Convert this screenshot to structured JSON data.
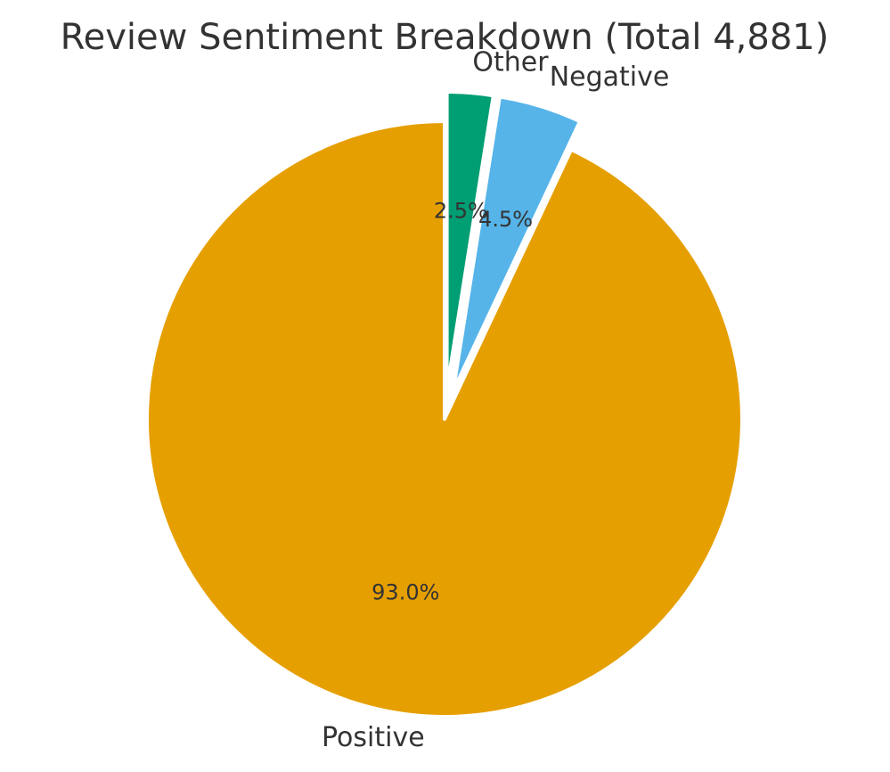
{
  "chart_data": {
    "type": "pie",
    "title": "Review Sentiment Breakdown (Total 4,881)",
    "categories": [
      "Other",
      "Negative",
      "Positive"
    ],
    "values": [
      2.5,
      4.5,
      93.0
    ],
    "value_labels": [
      "2.5%",
      "4.5%",
      "93.0%"
    ],
    "colors": [
      "#009E73",
      "#56B4E9",
      "#E69F00"
    ],
    "exploded": [
      "Other",
      "Negative"
    ],
    "start_angle": "top",
    "direction": "clockwise",
    "legend": "none"
  }
}
